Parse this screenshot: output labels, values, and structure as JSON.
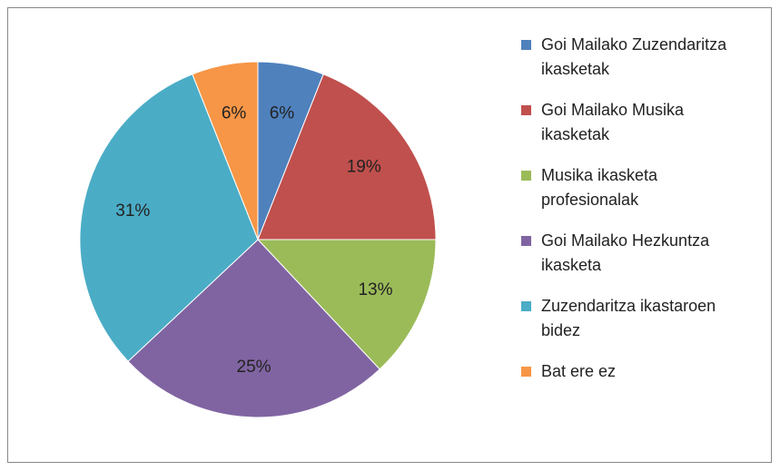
{
  "chart_data": {
    "type": "pie",
    "categories": [
      "Goi Mailako Zuzendaritza ikasketak",
      "Goi Mailako Musika ikasketak",
      "Musika ikasketa profesionalak",
      "Goi Mailako Hezkuntza ikasketa",
      "Zuzendaritza ikastaroen bidez",
      "Bat ere ez"
    ],
    "values": [
      6,
      19,
      13,
      25,
      31,
      6
    ],
    "value_labels": [
      "6%",
      "19%",
      "13%",
      "25%",
      "31%",
      "6%"
    ],
    "colors": [
      "#4f81bd",
      "#c0504d",
      "#9bbb59",
      "#8064a2",
      "#4bacc6",
      "#f79646"
    ],
    "legend": "right"
  }
}
